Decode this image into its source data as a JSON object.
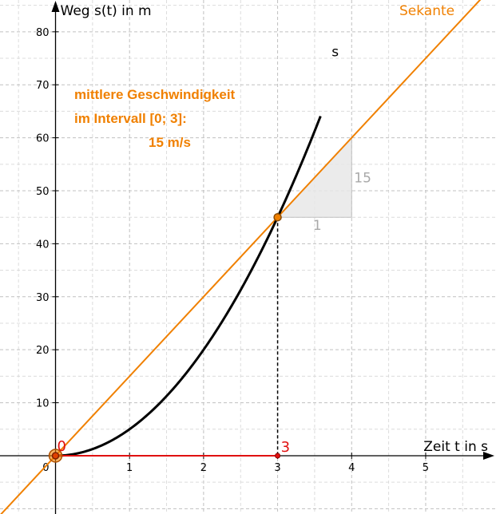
{
  "chart_data": {
    "type": "line",
    "title": "",
    "xlabel": "Zeit t in s",
    "ylabel": "Weg s(t) in m",
    "xlim": [
      -0.75,
      5.95
    ],
    "ylim": [
      -11,
      86
    ],
    "x_ticks": [
      1,
      2,
      3,
      4,
      5
    ],
    "y_ticks": [
      10,
      20,
      30,
      40,
      50,
      60,
      70,
      80
    ],
    "origin_label": "0",
    "grid": true,
    "series": [
      {
        "name": "s",
        "function": "5*t^2",
        "color": "#000000"
      },
      {
        "name": "Sekante",
        "function": "15*t",
        "color": "#f08000"
      }
    ],
    "points": [
      {
        "label": "0",
        "t": 0,
        "s": 0
      },
      {
        "label": "",
        "t": 3,
        "s": 45
      },
      {
        "label": "3",
        "t": 3,
        "s": 0
      }
    ],
    "slope_triangle": {
      "run": 1,
      "rise": 15,
      "run_label": "1",
      "rise_label": "15"
    },
    "annotation": {
      "line1": "mittlere Geschwindigkeit",
      "line2": "im Intervall [0; 3]:",
      "line3": "15 m/s"
    }
  }
}
